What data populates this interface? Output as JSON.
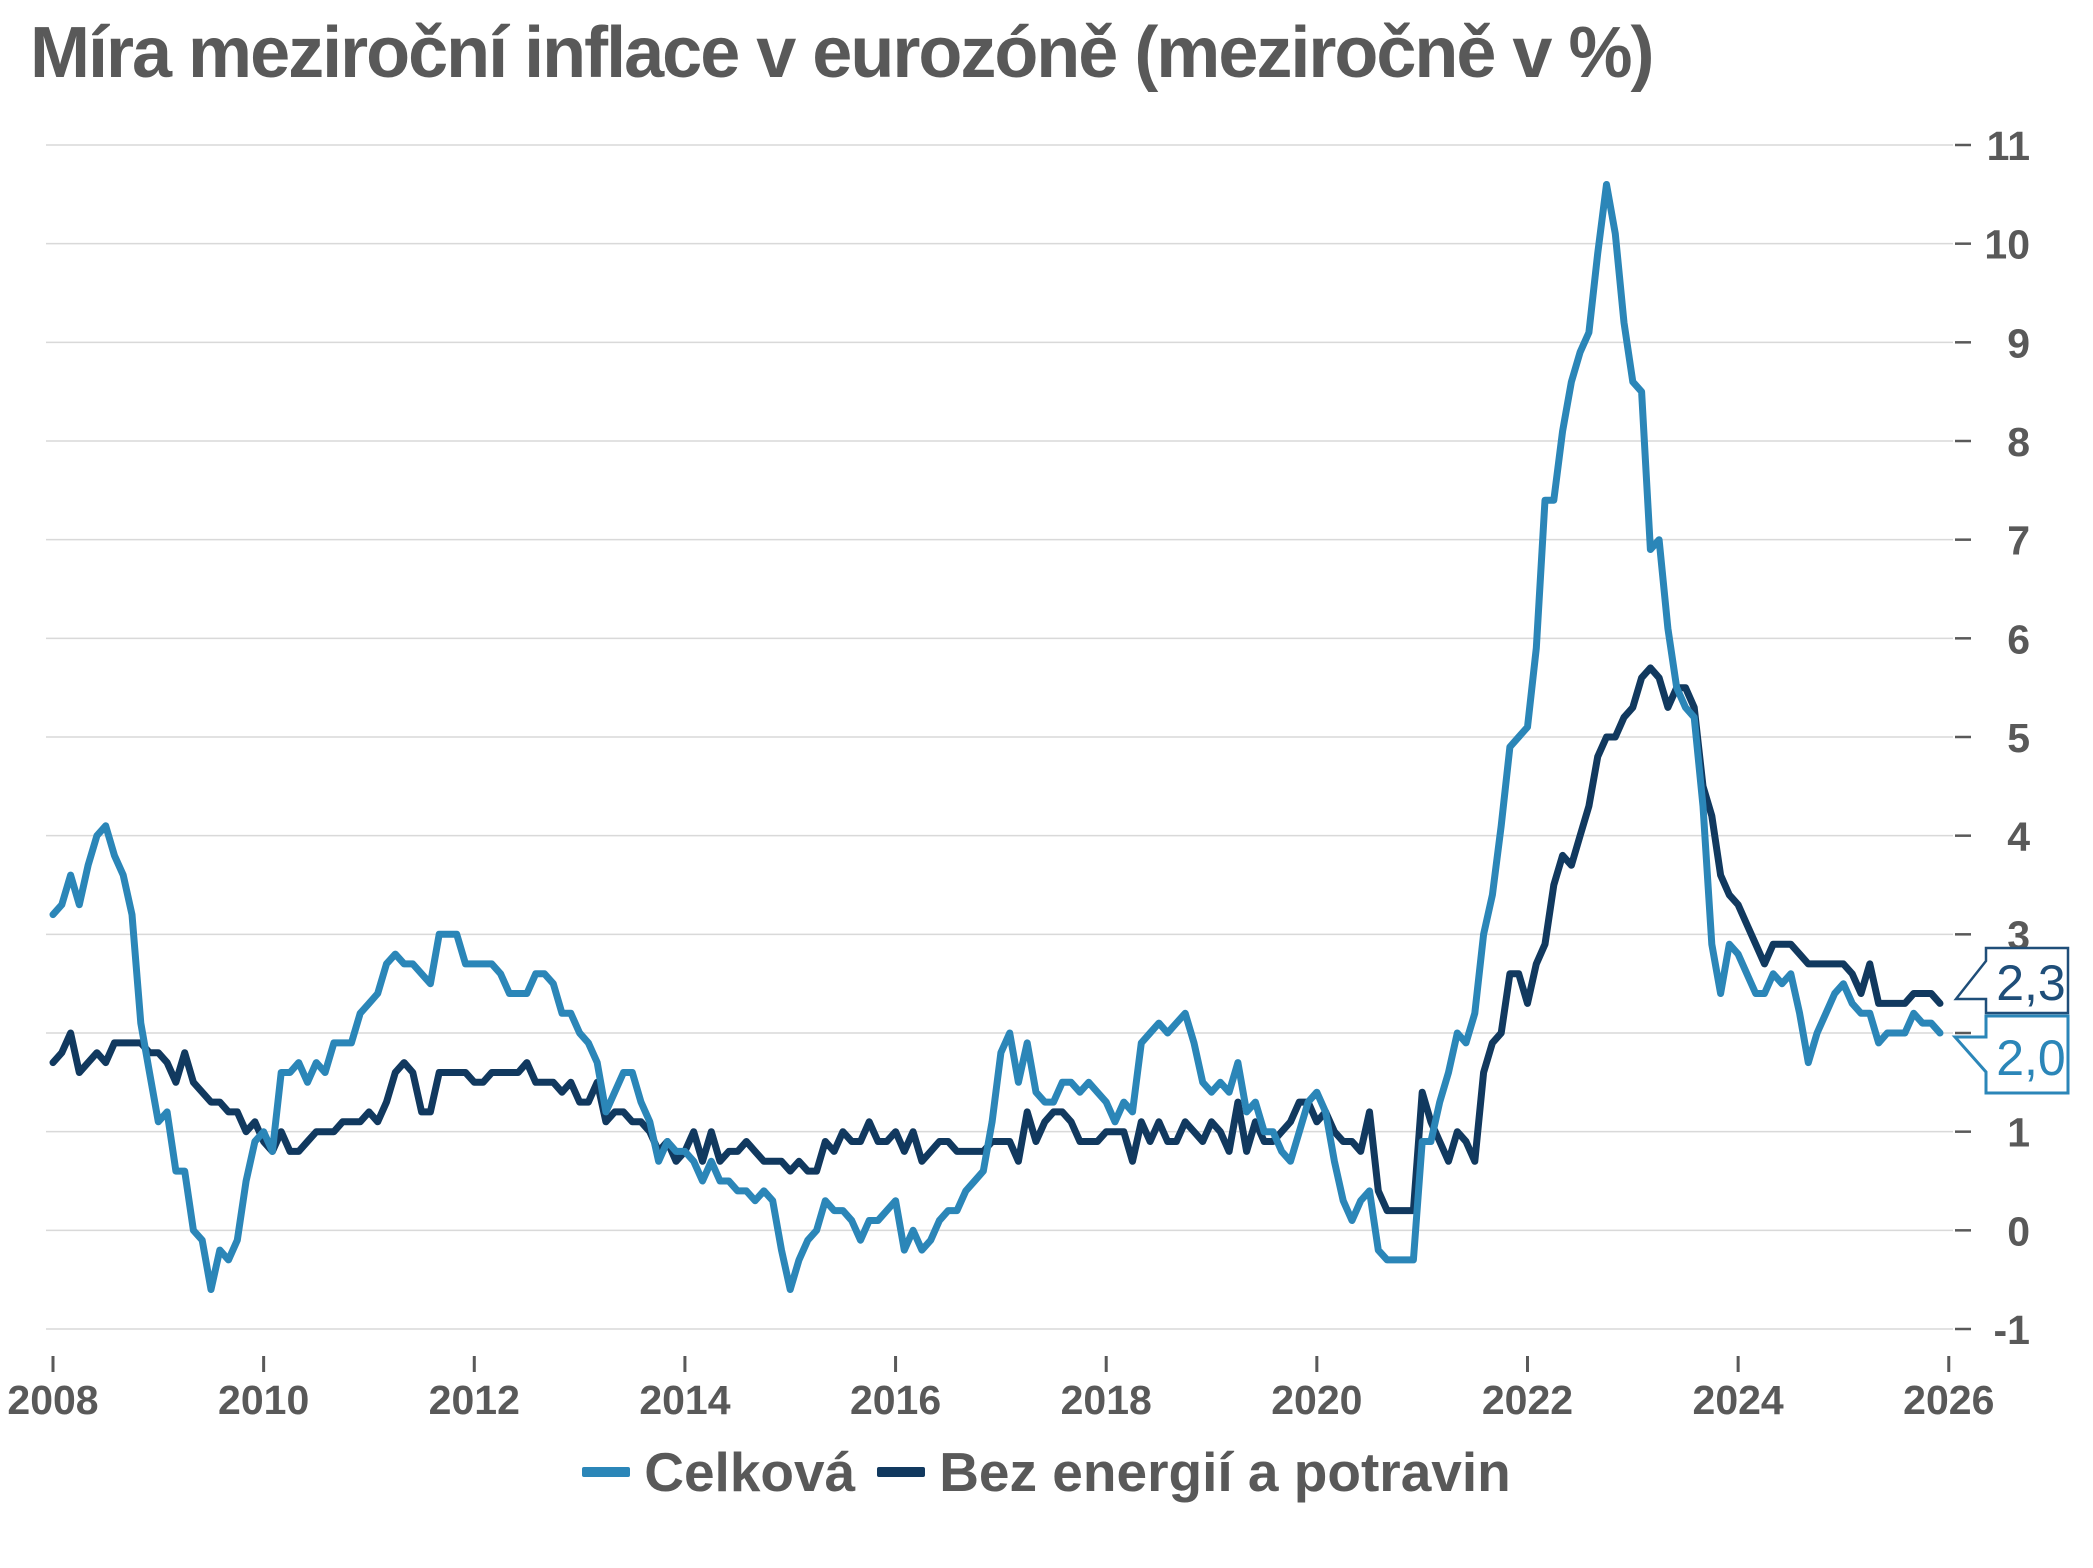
{
  "title": "Míra meziroční inflace v eurozóně (meziročně v %)",
  "colors": {
    "total_line": "#2b86b8",
    "core_line": "#11395f",
    "core_callout": "#1f4e79",
    "grid": "#d9d9d9",
    "tick": "#595959",
    "axis_text": "#595959",
    "background": "#ffffff"
  },
  "chart_data": {
    "type": "line",
    "title": "Míra meziroční inflace v eurozóně (meziročně v %)",
    "xlabel": "",
    "ylabel": "",
    "x_start": "2008-01",
    "x_end": "2025-12",
    "frequency": "monthly",
    "ylim": [
      -1,
      11
    ],
    "grid": "horizontal",
    "legend_position": "bottom",
    "x_tick_labels": [
      "2008",
      "2010",
      "2012",
      "2014",
      "2016",
      "2018",
      "2020",
      "2022",
      "2024",
      "2026"
    ],
    "y_tick_labels": [
      "11",
      "10",
      "9",
      "8",
      "7",
      "6",
      "5",
      "4",
      "3",
      "1",
      "0",
      "-1"
    ],
    "series": [
      {
        "name": "Celková",
        "color": "#2b86b8",
        "end_label": "2,0",
        "values": [
          3.2,
          3.3,
          3.6,
          3.3,
          3.7,
          4.0,
          4.1,
          3.8,
          3.6,
          3.2,
          2.1,
          1.6,
          1.1,
          1.2,
          0.6,
          0.6,
          0.0,
          -0.1,
          -0.6,
          -0.2,
          -0.3,
          -0.1,
          0.5,
          0.9,
          1.0,
          0.8,
          1.6,
          1.6,
          1.7,
          1.5,
          1.7,
          1.6,
          1.9,
          1.9,
          1.9,
          2.2,
          2.3,
          2.4,
          2.7,
          2.8,
          2.7,
          2.7,
          2.6,
          2.5,
          3.0,
          3.0,
          3.0,
          2.7,
          2.7,
          2.7,
          2.7,
          2.6,
          2.4,
          2.4,
          2.4,
          2.6,
          2.6,
          2.5,
          2.2,
          2.2,
          2.0,
          1.9,
          1.7,
          1.2,
          1.4,
          1.6,
          1.6,
          1.3,
          1.1,
          0.7,
          0.9,
          0.8,
          0.8,
          0.7,
          0.5,
          0.7,
          0.5,
          0.5,
          0.4,
          0.4,
          0.3,
          0.4,
          0.3,
          -0.2,
          -0.6,
          -0.3,
          -0.1,
          0.0,
          0.3,
          0.2,
          0.2,
          0.1,
          -0.1,
          0.1,
          0.1,
          0.2,
          0.3,
          -0.2,
          0.0,
          -0.2,
          -0.1,
          0.1,
          0.2,
          0.2,
          0.4,
          0.5,
          0.6,
          1.1,
          1.8,
          2.0,
          1.5,
          1.9,
          1.4,
          1.3,
          1.3,
          1.5,
          1.5,
          1.4,
          1.5,
          1.4,
          1.3,
          1.1,
          1.3,
          1.2,
          1.9,
          2.0,
          2.1,
          2.0,
          2.1,
          2.2,
          1.9,
          1.5,
          1.4,
          1.5,
          1.4,
          1.7,
          1.2,
          1.3,
          1.0,
          1.0,
          0.8,
          0.7,
          1.0,
          1.3,
          1.4,
          1.2,
          0.7,
          0.3,
          0.1,
          0.3,
          0.4,
          -0.2,
          -0.3,
          -0.3,
          -0.3,
          -0.3,
          0.9,
          0.9,
          1.3,
          1.6,
          2.0,
          1.9,
          2.2,
          3.0,
          3.4,
          4.1,
          4.9,
          5.0,
          5.1,
          5.9,
          7.4,
          7.4,
          8.1,
          8.6,
          8.9,
          9.1,
          9.9,
          10.6,
          10.1,
          9.2,
          8.6,
          8.5,
          6.9,
          7.0,
          6.1,
          5.5,
          5.3,
          5.2,
          4.3,
          2.9,
          2.4,
          2.9,
          2.8,
          2.6,
          2.4,
          2.4,
          2.6,
          2.5,
          2.6,
          2.2,
          1.7,
          2.0,
          2.2,
          2.4,
          2.5,
          2.3,
          2.2,
          2.2,
          1.9,
          2.0,
          2.0,
          2.0,
          2.2,
          2.1,
          2.1,
          2.0
        ]
      },
      {
        "name": "Bez energií a potravin",
        "color": "#11395f",
        "end_label": "2,3",
        "values": [
          1.7,
          1.8,
          2.0,
          1.6,
          1.7,
          1.8,
          1.7,
          1.9,
          1.9,
          1.9,
          1.9,
          1.8,
          1.8,
          1.7,
          1.5,
          1.8,
          1.5,
          1.4,
          1.3,
          1.3,
          1.2,
          1.2,
          1.0,
          1.1,
          0.9,
          0.8,
          1.0,
          0.8,
          0.8,
          0.9,
          1.0,
          1.0,
          1.0,
          1.1,
          1.1,
          1.1,
          1.2,
          1.1,
          1.3,
          1.6,
          1.7,
          1.6,
          1.2,
          1.2,
          1.6,
          1.6,
          1.6,
          1.6,
          1.5,
          1.5,
          1.6,
          1.6,
          1.6,
          1.6,
          1.7,
          1.5,
          1.5,
          1.5,
          1.4,
          1.5,
          1.3,
          1.3,
          1.5,
          1.1,
          1.2,
          1.2,
          1.1,
          1.1,
          1.0,
          0.8,
          0.9,
          0.7,
          0.8,
          1.0,
          0.7,
          1.0,
          0.7,
          0.8,
          0.8,
          0.9,
          0.8,
          0.7,
          0.7,
          0.7,
          0.6,
          0.7,
          0.6,
          0.6,
          0.9,
          0.8,
          1.0,
          0.9,
          0.9,
          1.1,
          0.9,
          0.9,
          1.0,
          0.8,
          1.0,
          0.7,
          0.8,
          0.9,
          0.9,
          0.8,
          0.8,
          0.8,
          0.8,
          0.9,
          0.9,
          0.9,
          0.7,
          1.2,
          0.9,
          1.1,
          1.2,
          1.2,
          1.1,
          0.9,
          0.9,
          0.9,
          1.0,
          1.0,
          1.0,
          0.7,
          1.1,
          0.9,
          1.1,
          0.9,
          0.9,
          1.1,
          1.0,
          0.9,
          1.1,
          1.0,
          0.8,
          1.3,
          0.8,
          1.1,
          0.9,
          0.9,
          1.0,
          1.1,
          1.3,
          1.3,
          1.1,
          1.2,
          1.0,
          0.9,
          0.9,
          0.8,
          1.2,
          0.4,
          0.2,
          0.2,
          0.2,
          0.2,
          1.4,
          1.1,
          0.9,
          0.7,
          1.0,
          0.9,
          0.7,
          1.6,
          1.9,
          2.0,
          2.6,
          2.6,
          2.3,
          2.7,
          2.9,
          3.5,
          3.8,
          3.7,
          4.0,
          4.3,
          4.8,
          5.0,
          5.0,
          5.2,
          5.3,
          5.6,
          5.7,
          5.6,
          5.3,
          5.5,
          5.5,
          5.3,
          4.5,
          4.2,
          3.6,
          3.4,
          3.3,
          3.1,
          2.9,
          2.7,
          2.9,
          2.9,
          2.9,
          2.8,
          2.7,
          2.7,
          2.7,
          2.7,
          2.7,
          2.6,
          2.4,
          2.7,
          2.3,
          2.3,
          2.3,
          2.3,
          2.4,
          2.4,
          2.4,
          2.3
        ]
      }
    ]
  }
}
